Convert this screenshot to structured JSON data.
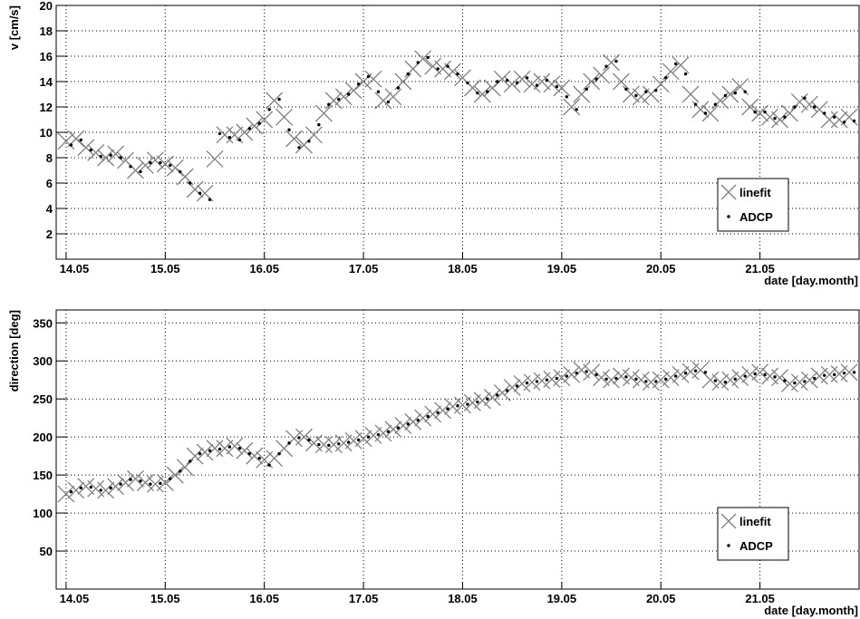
{
  "chart_data": [
    {
      "type": "scatter",
      "y_label": "v [cm/s]",
      "x_label": "date [day.month]",
      "xlim": [
        13.9,
        22.0
      ],
      "ylim": [
        0,
        20
      ],
      "xticks": [
        {
          "value": 14,
          "label": "14.05"
        },
        {
          "value": 15,
          "label": "15.05"
        },
        {
          "value": 16,
          "label": "16.05"
        },
        {
          "value": 17,
          "label": "17.05"
        },
        {
          "value": 18,
          "label": "18.05"
        },
        {
          "value": 19,
          "label": "19.05"
        },
        {
          "value": 20,
          "label": "20.05"
        },
        {
          "value": 21,
          "label": "21.05"
        }
      ],
      "yticks": [
        2,
        4,
        6,
        8,
        10,
        12,
        14,
        16,
        18,
        20
      ],
      "grid": true,
      "legend": "lower right",
      "series": [
        {
          "name": "linefit",
          "color": "#808080",
          "marker": "x",
          "x": [
            14.0,
            14.1,
            14.2,
            14.3,
            14.4,
            14.5,
            14.6,
            14.7,
            14.8,
            14.9,
            15.0,
            15.1,
            15.2,
            15.3,
            15.4,
            15.5,
            15.6,
            15.7,
            15.8,
            15.9,
            16.0,
            16.1,
            16.2,
            16.3,
            16.4,
            16.5,
            16.6,
            16.7,
            16.8,
            16.9,
            17.0,
            17.1,
            17.2,
            17.3,
            17.4,
            17.5,
            17.6,
            17.7,
            17.8,
            17.9,
            18.0,
            18.1,
            18.2,
            18.3,
            18.4,
            18.5,
            18.6,
            18.7,
            18.8,
            18.9,
            19.0,
            19.1,
            19.2,
            19.3,
            19.4,
            19.5,
            19.6,
            19.7,
            19.8,
            19.9,
            20.0,
            20.1,
            20.2,
            20.3,
            20.4,
            20.5,
            20.6,
            20.7,
            20.8,
            20.9,
            21.0,
            21.1,
            21.2,
            21.3,
            21.4,
            21.5,
            21.6,
            21.7,
            21.8,
            21.9
          ],
          "values": [
            9.3,
            9.5,
            8.8,
            8.4,
            8.0,
            8.3,
            7.8,
            7.0,
            7.4,
            7.8,
            7.5,
            7.2,
            6.5,
            5.5,
            5.2,
            7.9,
            9.8,
            9.8,
            10.0,
            10.5,
            11.0,
            12.5,
            11.2,
            9.5,
            9.0,
            9.8,
            11.5,
            12.5,
            12.8,
            13.3,
            14.0,
            14.2,
            12.5,
            12.8,
            14.0,
            15.0,
            15.8,
            15.2,
            15.0,
            14.8,
            14.3,
            13.5,
            13.0,
            13.5,
            14.2,
            13.8,
            14.2,
            13.8,
            14.0,
            13.8,
            13.5,
            12.0,
            13.0,
            14.0,
            14.5,
            15.5,
            14.0,
            13.0,
            12.8,
            13.0,
            13.8,
            14.8,
            15.3,
            13.0,
            11.8,
            11.5,
            12.5,
            13.0,
            13.6,
            12.0,
            11.5,
            11.2,
            11.0,
            11.5,
            12.4,
            12.2,
            11.8,
            11.0,
            11.0,
            11.2
          ]
        },
        {
          "name": "ADCP",
          "color": "#000000",
          "marker": "dot",
          "x": [
            14.05,
            14.15,
            14.25,
            14.35,
            14.45,
            14.55,
            14.65,
            14.75,
            14.85,
            14.95,
            15.05,
            15.15,
            15.25,
            15.35,
            15.45,
            15.55,
            15.65,
            15.75,
            15.85,
            15.95,
            16.05,
            16.15,
            16.25,
            16.35,
            16.45,
            16.55,
            16.65,
            16.75,
            16.85,
            16.95,
            17.05,
            17.15,
            17.25,
            17.35,
            17.45,
            17.55,
            17.65,
            17.75,
            17.85,
            17.95,
            18.05,
            18.15,
            18.25,
            18.35,
            18.45,
            18.55,
            18.65,
            18.75,
            18.85,
            18.95,
            19.05,
            19.15,
            19.25,
            19.35,
            19.45,
            19.55,
            19.65,
            19.75,
            19.85,
            19.95,
            20.05,
            20.15,
            20.25,
            20.35,
            20.45,
            20.55,
            20.65,
            20.75,
            20.85,
            20.95,
            21.05,
            21.15,
            21.25,
            21.35,
            21.45,
            21.55,
            21.65,
            21.75,
            21.85,
            21.95
          ],
          "values": [
            9.0,
            9.4,
            8.6,
            8.1,
            8.2,
            8.0,
            7.3,
            6.9,
            7.6,
            7.6,
            7.4,
            6.9,
            6.0,
            5.2,
            4.7,
            9.9,
            9.6,
            9.4,
            10.3,
            10.7,
            11.8,
            12.6,
            10.2,
            8.8,
            9.3,
            10.6,
            12.2,
            12.6,
            13.0,
            13.8,
            14.4,
            13.2,
            12.4,
            13.5,
            14.6,
            15.5,
            15.9,
            15.0,
            15.2,
            14.6,
            13.9,
            13.1,
            13.2,
            14.0,
            14.1,
            13.9,
            14.3,
            13.7,
            14.1,
            13.6,
            12.8,
            11.8,
            13.4,
            14.2,
            15.2,
            15.6,
            13.4,
            12.9,
            13.2,
            13.3,
            14.3,
            15.4,
            14.6,
            12.2,
            11.5,
            12.2,
            12.9,
            13.1,
            13.2,
            11.6,
            11.6,
            11.1,
            11.2,
            12.0,
            12.7,
            12.0,
            11.5,
            11.2,
            10.8,
            10.9
          ]
        }
      ]
    },
    {
      "type": "scatter",
      "y_label": "direction [deg]",
      "x_label": "date [day.month]",
      "xlim": [
        13.9,
        22.0
      ],
      "ylim": [
        0,
        367
      ],
      "xticks": [
        {
          "value": 14,
          "label": "14.05"
        },
        {
          "value": 15,
          "label": "15.05"
        },
        {
          "value": 16,
          "label": "16.05"
        },
        {
          "value": 17,
          "label": "17.05"
        },
        {
          "value": 18,
          "label": "18.05"
        },
        {
          "value": 19,
          "label": "19.05"
        },
        {
          "value": 20,
          "label": "20.05"
        },
        {
          "value": 21,
          "label": "21.05"
        }
      ],
      "yticks": [
        50,
        100,
        150,
        200,
        250,
        300,
        350
      ],
      "grid": true,
      "legend": "lower right",
      "series": [
        {
          "name": "linefit",
          "color": "#808080",
          "marker": "x",
          "x": [
            14.0,
            14.1,
            14.2,
            14.3,
            14.4,
            14.5,
            14.6,
            14.7,
            14.8,
            14.9,
            15.0,
            15.1,
            15.2,
            15.3,
            15.4,
            15.5,
            15.6,
            15.7,
            15.8,
            15.9,
            16.0,
            16.1,
            16.2,
            16.3,
            16.4,
            16.5,
            16.6,
            16.7,
            16.8,
            16.9,
            17.0,
            17.1,
            17.2,
            17.3,
            17.4,
            17.5,
            17.6,
            17.7,
            17.8,
            17.9,
            18.0,
            18.1,
            18.2,
            18.3,
            18.4,
            18.5,
            18.6,
            18.7,
            18.8,
            18.9,
            19.0,
            19.1,
            19.2,
            19.3,
            19.4,
            19.5,
            19.6,
            19.7,
            19.8,
            19.9,
            20.0,
            20.1,
            20.2,
            20.3,
            20.4,
            20.5,
            20.6,
            20.7,
            20.8,
            20.9,
            21.0,
            21.1,
            21.2,
            21.3,
            21.4,
            21.5,
            21.6,
            21.7,
            21.8,
            21.9
          ],
          "values": [
            125,
            130,
            135,
            132,
            130,
            135,
            140,
            145,
            140,
            138,
            140,
            150,
            160,
            175,
            180,
            185,
            185,
            188,
            182,
            175,
            170,
            172,
            185,
            198,
            200,
            192,
            190,
            190,
            192,
            195,
            198,
            202,
            205,
            210,
            215,
            220,
            225,
            230,
            235,
            240,
            242,
            245,
            248,
            252,
            258,
            265,
            270,
            272,
            274,
            276,
            278,
            282,
            288,
            285,
            278,
            275,
            280,
            278,
            275,
            272,
            275,
            278,
            282,
            286,
            288,
            275,
            272,
            275,
            278,
            282,
            285,
            280,
            278,
            270,
            272,
            275,
            280,
            282,
            283,
            285
          ]
        },
        {
          "name": "ADCP",
          "color": "#000000",
          "marker": "dot",
          "x": [
            14.05,
            14.15,
            14.25,
            14.35,
            14.45,
            14.55,
            14.65,
            14.75,
            14.85,
            14.95,
            15.05,
            15.15,
            15.25,
            15.35,
            15.45,
            15.55,
            15.65,
            15.75,
            15.85,
            15.95,
            16.05,
            16.15,
            16.25,
            16.35,
            16.45,
            16.55,
            16.65,
            16.75,
            16.85,
            16.95,
            17.05,
            17.15,
            17.25,
            17.35,
            17.45,
            17.55,
            17.65,
            17.75,
            17.85,
            17.95,
            18.05,
            18.15,
            18.25,
            18.35,
            18.45,
            18.55,
            18.65,
            18.75,
            18.85,
            18.95,
            19.05,
            19.15,
            19.25,
            19.35,
            19.45,
            19.55,
            19.65,
            19.75,
            19.85,
            19.95,
            20.05,
            20.15,
            20.25,
            20.35,
            20.45,
            20.55,
            20.65,
            20.75,
            20.85,
            20.95,
            21.05,
            21.15,
            21.25,
            21.35,
            21.45,
            21.55,
            21.65,
            21.75,
            21.85,
            21.95
          ],
          "values": [
            128,
            133,
            134,
            130,
            133,
            138,
            144,
            142,
            138,
            139,
            145,
            155,
            168,
            178,
            182,
            184,
            187,
            185,
            178,
            172,
            163,
            178,
            192,
            199,
            196,
            190,
            189,
            191,
            193,
            196,
            200,
            203,
            207,
            212,
            217,
            222,
            227,
            232,
            237,
            241,
            243,
            246,
            250,
            255,
            261,
            267,
            271,
            273,
            275,
            277,
            280,
            284,
            286,
            282,
            276,
            277,
            279,
            276,
            273,
            273,
            276,
            280,
            284,
            287,
            285,
            274,
            272,
            276,
            280,
            283,
            282,
            279,
            274,
            271,
            273,
            277,
            281,
            282,
            284,
            285
          ]
        }
      ]
    }
  ]
}
